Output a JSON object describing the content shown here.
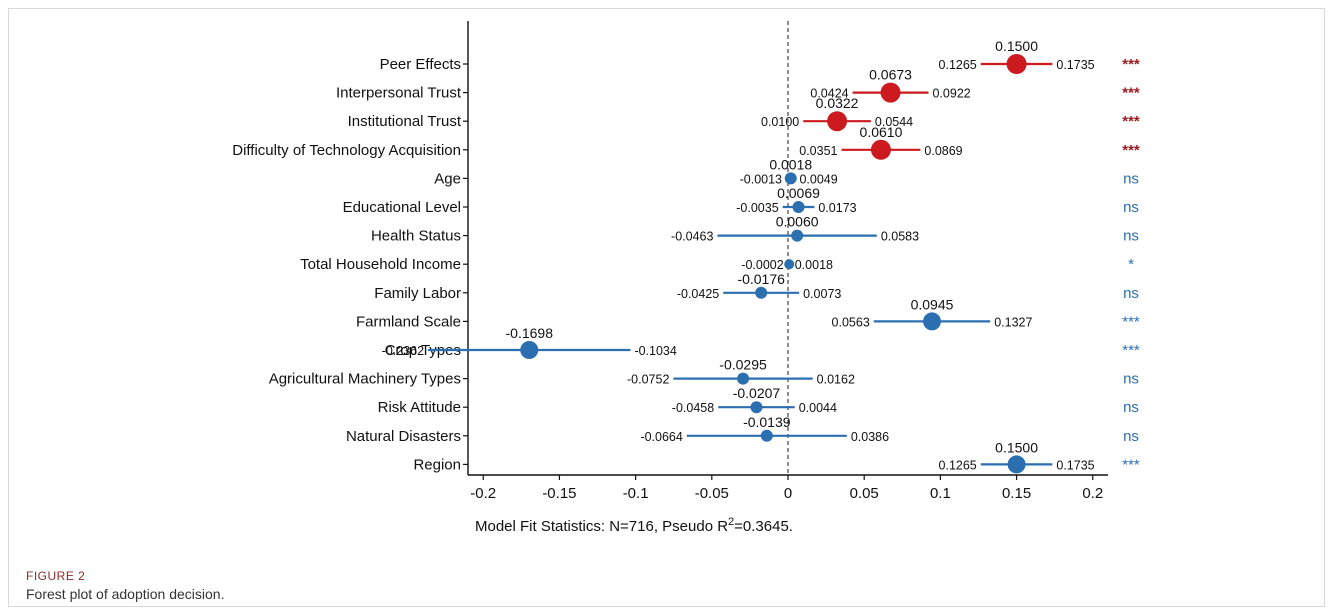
{
  "figure": {
    "label": "FIGURE 2",
    "caption": "Forest plot of adoption decision."
  },
  "colors": {
    "significant": "#cc1a1f",
    "significant_text": "#9b1b1e",
    "other": "#2b6fb0",
    "axis": "#111111"
  },
  "chart_data": {
    "type": "scatter",
    "subtype": "forest-plot",
    "title": "",
    "xlabel": "",
    "ylabel": "",
    "xlim": [
      -0.21,
      0.21
    ],
    "xticks": [
      -0.2,
      -0.15,
      -0.1,
      -0.05,
      0,
      0.05,
      0.1,
      0.15,
      0.2
    ],
    "xtick_labels": [
      "-0.2",
      "-0.15",
      "-0.1",
      "-0.05",
      "0",
      "0.05",
      "0.1",
      "0.15",
      "0.2"
    ],
    "reference_line": 0,
    "grid": false,
    "note": "Model Fit Statistics: N=716, Pseudo R²=0.3645.",
    "rows": [
      {
        "label": "Peer Effects",
        "estimate": 0.15,
        "estimate_text": "0.1500",
        "lower": 0.1265,
        "lower_text": "0.1265",
        "upper": 0.1735,
        "upper_text": "0.1735",
        "sig": "***",
        "group": "red",
        "size": 10
      },
      {
        "label": "Interpersonal Trust",
        "estimate": 0.0673,
        "estimate_text": "0.0673",
        "lower": 0.0424,
        "lower_text": "0.0424",
        "upper": 0.0922,
        "upper_text": "0.0922",
        "sig": "***",
        "group": "red",
        "size": 10
      },
      {
        "label": "Institutional Trust",
        "estimate": 0.0322,
        "estimate_text": "0.0322",
        "lower": 0.01,
        "lower_text": "0.0100",
        "upper": 0.0544,
        "upper_text": "0.0544",
        "sig": "***",
        "group": "red",
        "size": 10
      },
      {
        "label": "Difficulty of Technology Acquisition",
        "estimate": 0.061,
        "estimate_text": "0.0610",
        "lower": 0.0351,
        "lower_text": "0.0351",
        "upper": 0.0869,
        "upper_text": "0.0869",
        "sig": "***",
        "group": "red",
        "size": 10
      },
      {
        "label": "Age",
        "estimate": 0.0018,
        "estimate_text": "0.0018",
        "lower": -0.0013,
        "lower_text": "-0.0013",
        "upper": 0.0049,
        "upper_text": "0.0049",
        "sig": "ns",
        "group": "blue",
        "size": 6
      },
      {
        "label": "Educational Level",
        "estimate": 0.0069,
        "estimate_text": "0.0069",
        "lower": -0.0035,
        "lower_text": "-0.0035",
        "upper": 0.0173,
        "upper_text": "0.0173",
        "sig": "ns",
        "group": "blue",
        "size": 6
      },
      {
        "label": "Health Status",
        "estimate": 0.006,
        "estimate_text": "0.0060",
        "lower": -0.0463,
        "lower_text": "-0.0463",
        "upper": 0.0583,
        "upper_text": "0.0583",
        "sig": "ns",
        "group": "blue",
        "size": 6
      },
      {
        "label": "Total Household Income",
        "estimate": 0.0008,
        "estimate_text": "",
        "lower": -0.0002,
        "lower_text": "-0.0002",
        "upper": 0.0018,
        "upper_text": "0.0018",
        "sig": "*",
        "group": "blue",
        "size": 5
      },
      {
        "label": "Family Labor",
        "estimate": -0.0176,
        "estimate_text": "-0.0176",
        "lower": -0.0425,
        "lower_text": "-0.0425",
        "upper": 0.0073,
        "upper_text": "0.0073",
        "sig": "ns",
        "group": "blue",
        "size": 6
      },
      {
        "label": "Farmland Scale",
        "estimate": 0.0945,
        "estimate_text": "0.0945",
        "lower": 0.0563,
        "lower_text": "0.0563",
        "upper": 0.1327,
        "upper_text": "0.1327",
        "sig": "***",
        "group": "blue",
        "size": 9
      },
      {
        "label": "Crop Types",
        "estimate": -0.1698,
        "estimate_text": "-0.1698",
        "lower": -0.2362,
        "lower_text": "-0.2362",
        "upper": -0.1034,
        "upper_text": "-0.1034",
        "sig": "***",
        "group": "blue",
        "size": 9
      },
      {
        "label": "Agricultural Machinery Types",
        "estimate": -0.0295,
        "estimate_text": "-0.0295",
        "lower": -0.0752,
        "lower_text": "-0.0752",
        "upper": 0.0162,
        "upper_text": "0.0162",
        "sig": "ns",
        "group": "blue",
        "size": 6
      },
      {
        "label": "Risk Attitude",
        "estimate": -0.0207,
        "estimate_text": "-0.0207",
        "lower": -0.0458,
        "lower_text": "-0.0458",
        "upper": 0.0044,
        "upper_text": "0.0044",
        "sig": "ns",
        "group": "blue",
        "size": 6
      },
      {
        "label": "Natural Disasters",
        "estimate": -0.0139,
        "estimate_text": "-0.0139",
        "lower": -0.0664,
        "lower_text": "-0.0664",
        "upper": 0.0386,
        "upper_text": "0.0386",
        "sig": "ns",
        "group": "blue",
        "size": 6
      },
      {
        "label": "Region",
        "estimate": 0.15,
        "estimate_text": "0.1500",
        "lower": 0.1265,
        "lower_text": "0.1265",
        "upper": 0.1735,
        "upper_text": "0.1735",
        "sig": "***",
        "group": "blue",
        "size": 9
      }
    ]
  }
}
